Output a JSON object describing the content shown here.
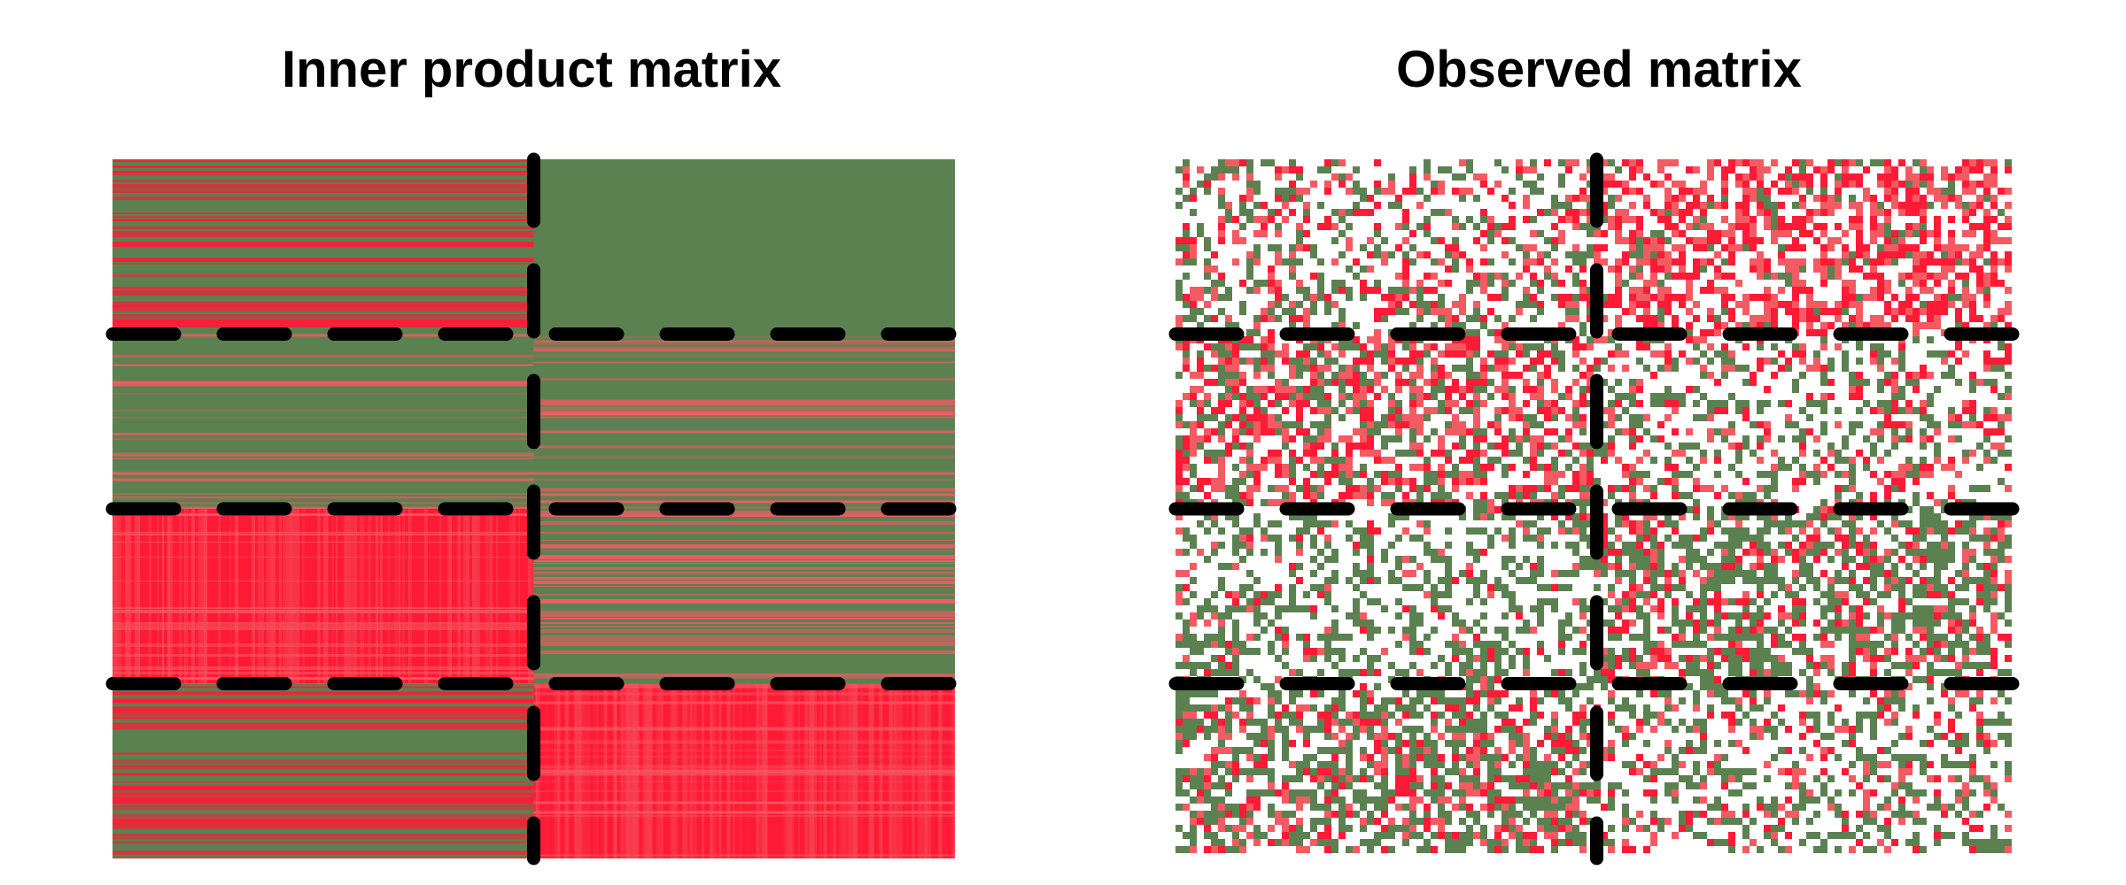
{
  "chart_data": [
    {
      "type": "heatmap",
      "title": "Inner product matrix",
      "row_blocks": 4,
      "col_blocks": 2,
      "row_block_boundaries": [
        0.25,
        0.5,
        0.75
      ],
      "col_block_boundaries": [
        0.5
      ],
      "block_pattern": [
        [
          "red-green row stripes",
          "green"
        ],
        [
          "mostly green with faint red stripes",
          "green with faint red stripes"
        ],
        [
          "red",
          "green with red stripes"
        ],
        [
          "green with red stripes",
          "red"
        ]
      ],
      "grid": false,
      "legend": "none"
    },
    {
      "type": "heatmap",
      "title": "Observed matrix",
      "row_blocks": 4,
      "col_blocks": 2,
      "row_block_boundaries": [
        0.25,
        0.5,
        0.75
      ],
      "col_block_boundaries": [
        0.5
      ],
      "block_pattern": [
        [
          "sparse mixed red and green",
          "dense red"
        ],
        [
          "dense mixed red",
          "sparse mixed"
        ],
        [
          "sparse green",
          "dense green"
        ],
        [
          "dense green-red mix",
          "sparse green-red mix"
        ]
      ],
      "grid": false,
      "legend": "none"
    }
  ],
  "colors": {
    "green": "#5b8151",
    "red": "#ff1a36",
    "pink": "#f35a62",
    "divider": "#000000",
    "background": "#ffffff"
  }
}
